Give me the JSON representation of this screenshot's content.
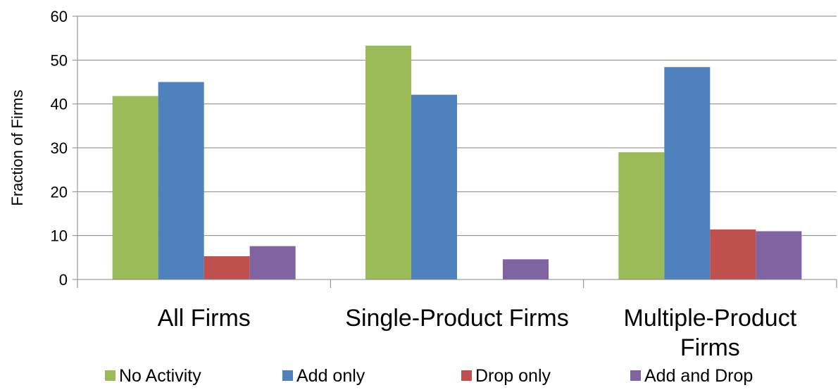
{
  "chart_data": {
    "type": "bar",
    "title": "",
    "xlabel": "",
    "ylabel": "Fraction of Firms",
    "ylim": [
      0,
      60
    ],
    "yticks": [
      0,
      10,
      20,
      30,
      40,
      50,
      60
    ],
    "grid": true,
    "legend_position": "bottom",
    "categories": [
      [
        "All Firms"
      ],
      [
        "Single-Product Firms"
      ],
      [
        "Multiple-Product",
        "Firms"
      ]
    ],
    "series": [
      {
        "name": "No Activity",
        "color": "#9BBB59",
        "values": [
          41.8,
          53.3,
          29.0
        ]
      },
      {
        "name": "Add only",
        "color": "#4F81BD",
        "values": [
          45.0,
          42.1,
          48.4
        ]
      },
      {
        "name": "Drop only",
        "color": "#C0504D",
        "values": [
          5.3,
          0,
          11.4
        ]
      },
      {
        "name": "Add and Drop",
        "color": "#8064A2",
        "values": [
          7.6,
          4.6,
          11.0
        ]
      }
    ]
  }
}
